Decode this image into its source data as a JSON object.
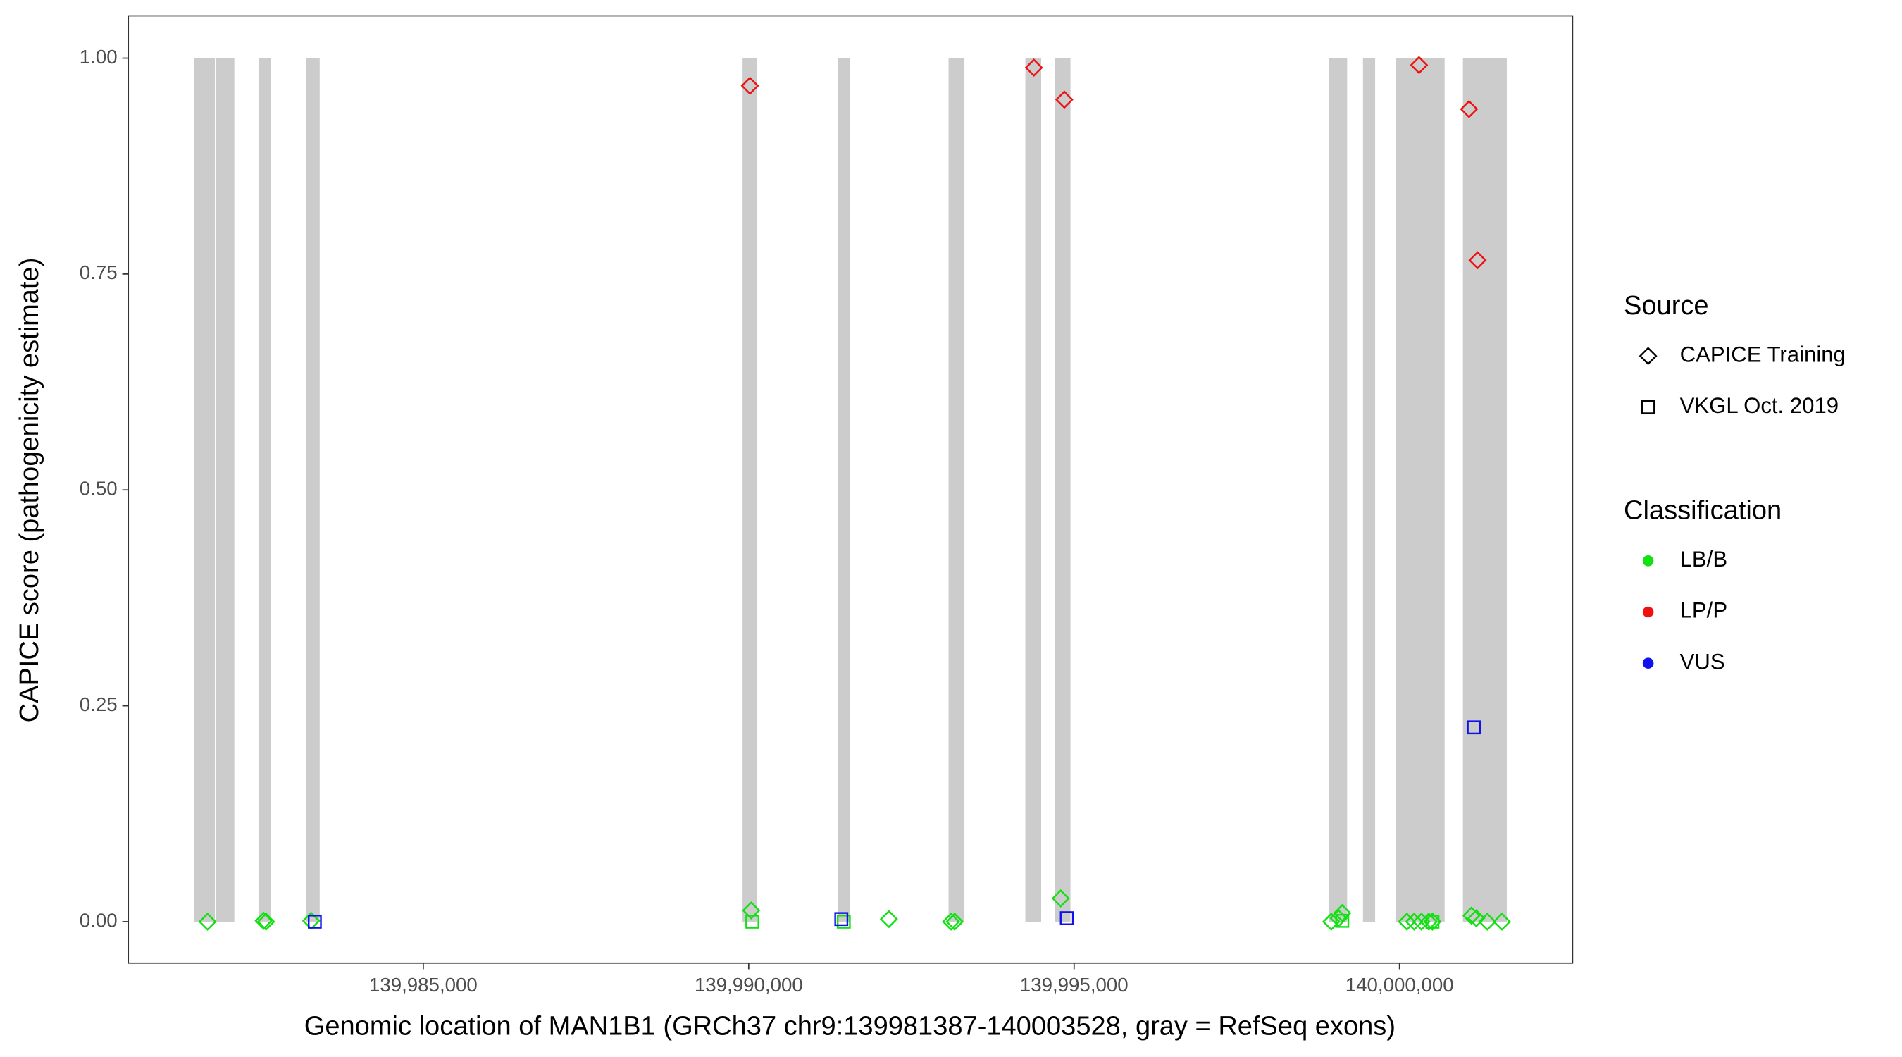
{
  "chart_data": {
    "type": "scatter",
    "xlabel": "Genomic location of MAN1B1 (GRCh37 chr9:139981387-140003528, gray = RefSeq exons)",
    "ylabel": "CAPICE score (pathogenicity estimate)",
    "xlim": [
      139980468,
      140002659
    ],
    "ylim": [
      -0.048,
      1.049
    ],
    "xticks": [
      {
        "value": 139985000,
        "label": "139,985,000"
      },
      {
        "value": 139990000,
        "label": "139,990,000"
      },
      {
        "value": 139995000,
        "label": "139,995,000"
      },
      {
        "value": 140000000,
        "label": "140,000,000"
      }
    ],
    "yticks": [
      {
        "value": 0,
        "label": "0.00"
      },
      {
        "value": 0.25,
        "label": "0.25"
      },
      {
        "value": 0.5,
        "label": "0.50"
      },
      {
        "value": 0.75,
        "label": "0.75"
      },
      {
        "value": 1,
        "label": "1.00"
      }
    ],
    "grid": false,
    "exon_color": "#cccccc",
    "exons": [
      {
        "start": 139981479,
        "end": 139981798
      },
      {
        "start": 139981817,
        "end": 139982097
      },
      {
        "start": 139982472,
        "end": 139982659
      },
      {
        "start": 139983202,
        "end": 139983408
      },
      {
        "start": 139989906,
        "end": 139990131
      },
      {
        "start": 139991367,
        "end": 139991554
      },
      {
        "start": 139993071,
        "end": 139993315
      },
      {
        "start": 139994251,
        "end": 139994494
      },
      {
        "start": 139994700,
        "end": 139994944
      },
      {
        "start": 139998914,
        "end": 139999195
      },
      {
        "start": 139999438,
        "end": 139999625
      },
      {
        "start": 139999944,
        "end": 140000693
      },
      {
        "start": 140000974,
        "end": 140001648
      }
    ],
    "legends": [
      {
        "title": "Source",
        "items": [
          {
            "label": "CAPICE Training",
            "shape": "diamond"
          },
          {
            "label": "VKGL Oct. 2019",
            "shape": "square"
          }
        ]
      },
      {
        "title": "Classification",
        "items": [
          {
            "label": "LB/B",
            "color": "#11e011"
          },
          {
            "label": "LP/P",
            "color": "#ee1111"
          },
          {
            "label": "VUS",
            "color": "#1111ee"
          }
        ]
      }
    ],
    "series": [
      {
        "source": "CAPICE Training",
        "classification": "LB/B",
        "x": [
          139981685,
          139982547,
          139982584,
          139983277,
          139990038,
          139994794,
          139992154,
          139993109,
          139993165,
          139998952,
          139999120,
          139999064,
          140000113,
          140000225,
          140000337,
          140000450,
          140000506,
          140001105,
          140001180,
          140001349,
          140001573
        ],
        "values": [
          0,
          0.001,
          0,
          0.001,
          0.013,
          0.027,
          0.003,
          0,
          0,
          0,
          0.01,
          0.004,
          0,
          0,
          0,
          0,
          0,
          0.007,
          0.004,
          0,
          0
        ]
      },
      {
        "source": "VKGL Oct. 2019",
        "classification": "LB/B",
        "x": [
          139990056,
          139991461,
          139999120,
          140000506
        ],
        "values": [
          0,
          0,
          0.001,
          0
        ]
      },
      {
        "source": "CAPICE Training",
        "classification": "LP/P",
        "x": [
          139990019,
          139994382,
          139994850,
          140000300,
          140001068,
          140001199
        ],
        "values": [
          0.968,
          0.989,
          0.952,
          0.992,
          0.941,
          0.766
        ]
      },
      {
        "source": "VKGL Oct. 2019",
        "classification": "VUS",
        "x": [
          139983333,
          139991423,
          139994888,
          140001143
        ],
        "values": [
          0,
          0.003,
          0.004,
          0.225
        ]
      }
    ]
  }
}
